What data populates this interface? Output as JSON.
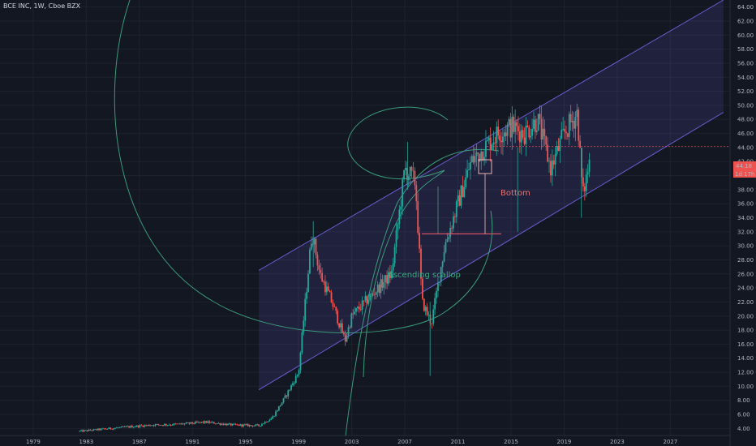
{
  "header": {
    "symbol": "BCE INC, 1W, Cboe BZX"
  },
  "price_badges": {
    "last": "44.18",
    "countdown": "1d 17h"
  },
  "annotations": {
    "scallop": "Ascending scallop",
    "bottom": "Bottom"
  },
  "colors": {
    "background": "#131722",
    "up": "#26a69a",
    "down": "#ef5350",
    "channel": "#7b6cf6",
    "arc": "#3fa882",
    "bottom_line": "#e8556b"
  },
  "chart_data": {
    "type": "candlestick",
    "title": "",
    "x_ticks": [
      "1979",
      "1983",
      "1987",
      "1991",
      "1995",
      "1999",
      "2003",
      "2007",
      "2011",
      "2015",
      "2019",
      "2023",
      "2027"
    ],
    "y_ticks": [
      "4.00",
      "6.00",
      "8.00",
      "10.00",
      "12.00",
      "14.00",
      "16.00",
      "18.00",
      "20.00",
      "22.00",
      "24.00",
      "26.00",
      "28.00",
      "30.00",
      "32.00",
      "34.00",
      "36.00",
      "38.00",
      "40.00",
      "42.00",
      "44.00",
      "46.00",
      "48.00",
      "50.00",
      "52.00",
      "54.00",
      "56.00",
      "58.00",
      "60.00",
      "62.00",
      "64.00"
    ],
    "xlim": [
      1976.5,
      2031.5
    ],
    "ylim": [
      3.0,
      65.0
    ],
    "price_path": [
      [
        1982.5,
        3.6
      ],
      [
        1986,
        4.2
      ],
      [
        1988,
        4.5
      ],
      [
        1990,
        4.6
      ],
      [
        1992,
        4.9
      ],
      [
        1994,
        4.5
      ],
      [
        1996,
        4.4
      ],
      [
        1997,
        5.5
      ],
      [
        1998,
        8.5
      ],
      [
        1999,
        12
      ],
      [
        2000,
        32
      ],
      [
        2000.6,
        26
      ],
      [
        2001.5,
        22
      ],
      [
        2002.5,
        16.5
      ],
      [
        2003,
        20
      ],
      [
        2004,
        22
      ],
      [
        2005,
        24
      ],
      [
        2006,
        26
      ],
      [
        2007,
        41
      ],
      [
        2007.8,
        39
      ],
      [
        2008.3,
        22
      ],
      [
        2009,
        19
      ],
      [
        2010,
        30
      ],
      [
        2011,
        36
      ],
      [
        2012,
        42
      ],
      [
        2013,
        44
      ],
      [
        2014,
        46
      ],
      [
        2015,
        47
      ],
      [
        2016,
        46
      ],
      [
        2017,
        48
      ],
      [
        2018,
        41
      ],
      [
        2019,
        46
      ],
      [
        2020,
        49
      ],
      [
        2020.4,
        37
      ],
      [
        2020.9,
        42
      ]
    ],
    "channel": {
      "upper": [
        [
          1996,
          26.5
        ],
        [
          2031,
          65.0
        ]
      ],
      "lower": [
        [
          1996,
          9.5
        ],
        [
          2031,
          49.0
        ]
      ]
    },
    "bottom_level": 31.7,
    "last_price": 44.18
  }
}
